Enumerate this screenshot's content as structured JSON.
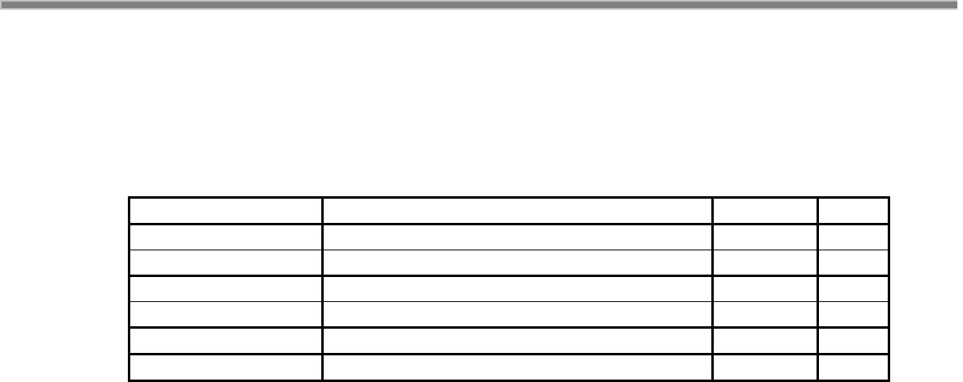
{
  "table": {
    "rows": [
      [
        "",
        "",
        "",
        ""
      ],
      [
        "",
        "",
        "",
        ""
      ],
      [
        "",
        "",
        "",
        ""
      ],
      [
        "",
        "",
        "",
        ""
      ],
      [
        "",
        "",
        "",
        ""
      ],
      [
        "",
        "",
        "",
        ""
      ],
      [
        "",
        "",
        "",
        ""
      ]
    ]
  },
  "colors": {
    "rule_outer": "#c0c0c0",
    "rule_inner": "#808080",
    "border": "#000000"
  }
}
